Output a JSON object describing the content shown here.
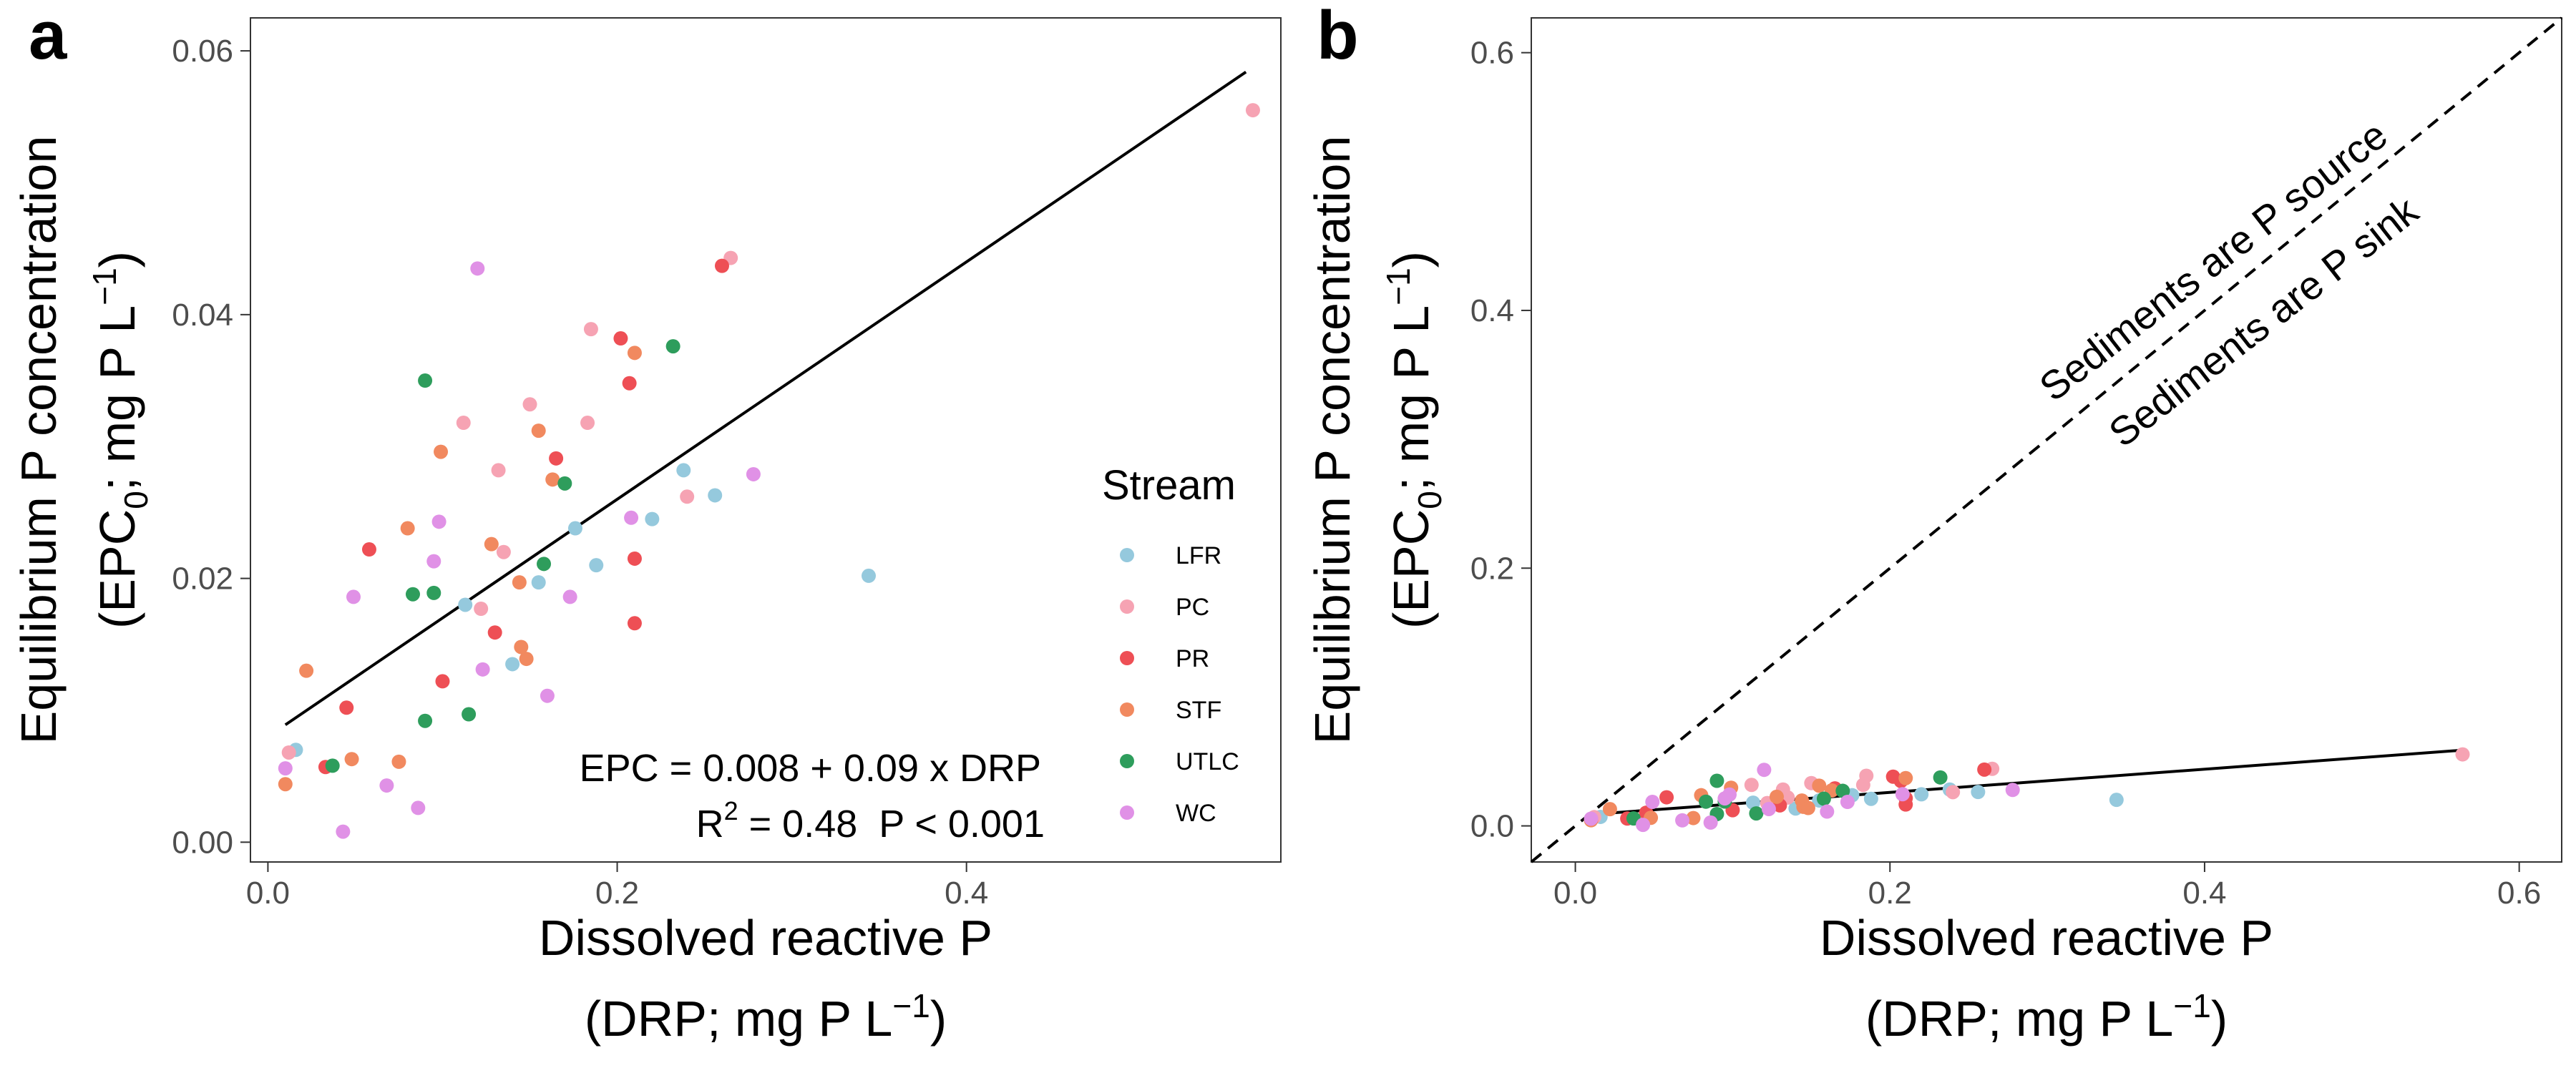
{
  "colors": {
    "LFR": "#95c9dd",
    "PC": "#f6a3b3",
    "PR": "#ee4f55",
    "STF": "#f1895f",
    "UTLC": "#2e9d5c",
    "WC": "#e091e6"
  },
  "chart_data": [
    {
      "type": "scatter",
      "panel": "a",
      "xlabel_line1": "Dissolved reactive P",
      "xlabel_line2": "(DRP; mg P L",
      "xlabel_sup": "−1",
      "xlabel_close": ")",
      "ylabel_line1": "Equilibrium P concentration",
      "ylabel_line2_pre": "(EPC",
      "ylabel_sub": "0",
      "ylabel_line2_mid": "; mg P L",
      "ylabel_sup": "−1",
      "ylabel_close": ")",
      "xlim": [
        -0.01,
        0.58
      ],
      "ylim": [
        -0.0015,
        0.0625
      ],
      "xticks": [
        0.0,
        0.2,
        0.4
      ],
      "xtick_labels": [
        "0.0",
        "0.2",
        "0.4"
      ],
      "yticks": [
        0.0,
        0.02,
        0.04,
        0.06
      ],
      "ytick_labels": [
        "0.00",
        "0.02",
        "0.04",
        "0.06"
      ],
      "grid": false,
      "legend": {
        "title": "Stream",
        "placement": "right-inside",
        "entries": [
          "LFR",
          "PC",
          "PR",
          "STF",
          "UTLC",
          "WC"
        ]
      },
      "regression": {
        "intercept": 0.008,
        "slope": 0.09,
        "x_range": [
          0.01,
          0.56
        ]
      },
      "equation_text": "EPC = 0.008 + 0.09 x DRP",
      "r2_prefix": "R",
      "r2_sup": "2",
      "r2_value": " = 0.48",
      "p_text": "P < 0.001",
      "series": [
        {
          "name": "LFR",
          "points": [
            [
              0.016,
              0.007
            ],
            [
              0.113,
              0.018
            ],
            [
              0.14,
              0.0135
            ],
            [
              0.155,
              0.0197
            ],
            [
              0.176,
              0.0238
            ],
            [
              0.188,
              0.021
            ],
            [
              0.22,
              0.0245
            ],
            [
              0.238,
              0.0282
            ],
            [
              0.256,
              0.0263
            ],
            [
              0.344,
              0.0202
            ]
          ]
        },
        {
          "name": "PC",
          "points": [
            [
              0.012,
              0.0068
            ],
            [
              0.112,
              0.0318
            ],
            [
              0.122,
              0.0177
            ],
            [
              0.132,
              0.0282
            ],
            [
              0.135,
              0.022
            ],
            [
              0.15,
              0.0332
            ],
            [
              0.183,
              0.0318
            ],
            [
              0.185,
              0.0389
            ],
            [
              0.24,
              0.0262
            ],
            [
              0.265,
              0.0443
            ],
            [
              0.564,
              0.0555
            ]
          ]
        },
        {
          "name": "PR",
          "points": [
            [
              0.033,
              0.0057
            ],
            [
              0.045,
              0.0102
            ],
            [
              0.058,
              0.0222
            ],
            [
              0.1,
              0.0122
            ],
            [
              0.13,
              0.0159
            ],
            [
              0.165,
              0.0291
            ],
            [
              0.202,
              0.0382
            ],
            [
              0.207,
              0.0348
            ],
            [
              0.21,
              0.0215
            ],
            [
              0.21,
              0.0166
            ],
            [
              0.26,
              0.0437
            ]
          ]
        },
        {
          "name": "STF",
          "points": [
            [
              0.01,
              0.0044
            ],
            [
              0.022,
              0.013
            ],
            [
              0.048,
              0.0063
            ],
            [
              0.075,
              0.0061
            ],
            [
              0.08,
              0.0238
            ],
            [
              0.099,
              0.0296
            ],
            [
              0.128,
              0.0226
            ],
            [
              0.144,
              0.0197
            ],
            [
              0.145,
              0.0148
            ],
            [
              0.148,
              0.0139
            ],
            [
              0.155,
              0.0312
            ],
            [
              0.163,
              0.0275
            ],
            [
              0.21,
              0.0371
            ]
          ]
        },
        {
          "name": "UTLC",
          "points": [
            [
              0.037,
              0.0058
            ],
            [
              0.083,
              0.0188
            ],
            [
              0.09,
              0.0092
            ],
            [
              0.09,
              0.035
            ],
            [
              0.095,
              0.0189
            ],
            [
              0.115,
              0.0097
            ],
            [
              0.158,
              0.0211
            ],
            [
              0.17,
              0.0272
            ],
            [
              0.232,
              0.0376
            ]
          ]
        },
        {
          "name": "WC",
          "points": [
            [
              0.01,
              0.0056
            ],
            [
              0.043,
              0.0008
            ],
            [
              0.049,
              0.0186
            ],
            [
              0.068,
              0.0043
            ],
            [
              0.086,
              0.0026
            ],
            [
              0.095,
              0.0213
            ],
            [
              0.098,
              0.0243
            ],
            [
              0.12,
              0.0435
            ],
            [
              0.123,
              0.0131
            ],
            [
              0.16,
              0.0111
            ],
            [
              0.173,
              0.0186
            ],
            [
              0.208,
              0.0246
            ],
            [
              0.278,
              0.0279
            ]
          ]
        }
      ]
    },
    {
      "type": "scatter",
      "panel": "b",
      "xlabel_line1": "Dissolved reactive P",
      "xlabel_line2": "(DRP; mg P L",
      "xlabel_sup": "−1",
      "xlabel_close": ")",
      "ylabel_line1": "Equilibrium P concentration",
      "ylabel_line2_pre": "(EPC",
      "ylabel_sub": "0",
      "ylabel_line2_mid": "; mg P L",
      "ylabel_sup": "−1",
      "ylabel_close": ")",
      "xlim": [
        -0.028,
        0.627
      ],
      "ylim": [
        -0.028,
        0.627
      ],
      "xticks": [
        0.0,
        0.2,
        0.4,
        0.6
      ],
      "xtick_labels": [
        "0.0",
        "0.2",
        "0.4",
        "0.6"
      ],
      "yticks": [
        0.0,
        0.2,
        0.4,
        0.6
      ],
      "ytick_labels": [
        "0.0",
        "0.2",
        "0.4",
        "0.6"
      ],
      "grid": false,
      "regression": {
        "intercept": 0.008,
        "slope": 0.09,
        "x_range": [
          0.01,
          0.565
        ]
      },
      "reference_line": "1:1 dashed",
      "source_text": "Sediments are P source",
      "sink_text": "Sediments are P sink"
    }
  ]
}
